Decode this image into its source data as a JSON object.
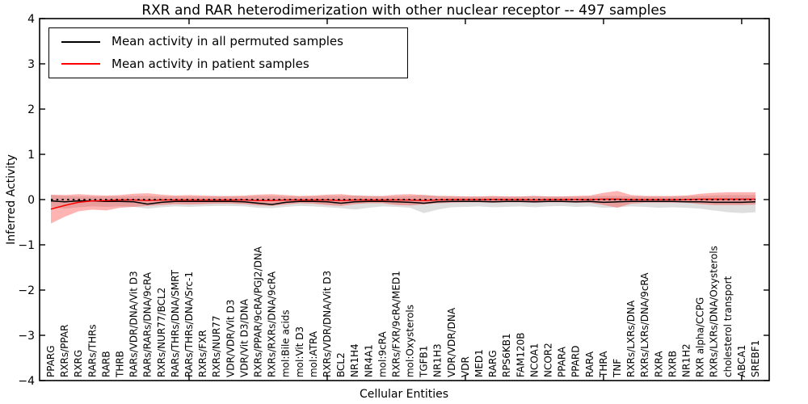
{
  "figure": {
    "background": "#ffffff",
    "frame_color": "#000000"
  },
  "chart_data": {
    "type": "line",
    "title": "RXR and RAR heterodimerization with other nuclear receptor -- 497 samples",
    "xlabel": "Cellular Entities",
    "ylabel": "Inferred Activity",
    "ylim": [
      -4,
      4
    ],
    "grid": false,
    "yticks": [
      {
        "v": 4,
        "label": "4"
      },
      {
        "v": 3,
        "label": "3"
      },
      {
        "v": 2,
        "label": "2"
      },
      {
        "v": 1,
        "label": "1"
      },
      {
        "v": 0,
        "label": "0"
      },
      {
        "v": -1,
        "label": "−1"
      },
      {
        "v": -2,
        "label": "−2"
      },
      {
        "v": -3,
        "label": "−3"
      },
      {
        "v": -4,
        "label": "−4"
      }
    ],
    "xtick_major_indices": [
      10,
      20,
      30,
      40,
      50
    ],
    "legend": {
      "position": "upper left",
      "entries": [
        {
          "label": "Mean activity in all permuted samples",
          "color": "#000000"
        },
        {
          "label": "Mean activity in patient samples",
          "color": "#ff0000"
        }
      ]
    },
    "categories": [
      "PPARG",
      "RXRs/PPAR",
      "RXRG",
      "RARs/THRs",
      "RARB",
      "THRB",
      "RARs/VDR/DNA/Vit D3",
      "RARs/RARs/DNA/9cRA",
      "RXRs/NUR77/BCL2",
      "RARs/THRs/DNA/SMRT",
      "RARs/THRs/DNA/Src-1",
      "RXRs/FXR",
      "RXRs/NUR77",
      "VDR/VDR/Vit D3",
      "VDR/Vit D3/DNA",
      "RXRs/PPAR/9cRA/PGJ2/DNA",
      "RXRs/RXRs/DNA/9cRA",
      "mol:Bile acids",
      "mol:Vit D3",
      "mol:ATRA",
      "RXRs/VDR/DNA/Vit D3",
      "BCL2",
      "NR1H4",
      "NR4A1",
      "mol:9cRA",
      "RXRs/FXR/9cRA/MED1",
      "mol:Oxysterols",
      "TGFB1",
      "NR1H3",
      "VDR/VDR/DNA",
      "VDR",
      "MED1",
      "RARG",
      "RPS6KB1",
      "FAM120B",
      "NCOA1",
      "NCOR2",
      "PPARA",
      "PPARD",
      "RARA",
      "THRA",
      "TNF",
      "RXRs/LXRs/DNA",
      "RXRs/LXRs/DNA/9cRA",
      "RXRA",
      "RXRB",
      "NR1H2",
      "RXR alpha/CCPG",
      "RXRs/LXRs/DNA/Oxysterols",
      "cholesterol transport",
      "ABCA1",
      "SREBF1"
    ],
    "series": [
      {
        "name": "Mean activity in all permuted samples",
        "color": "#000000",
        "style": "solid",
        "values": [
          -0.03,
          -0.05,
          -0.03,
          -0.03,
          -0.04,
          -0.04,
          -0.05,
          -0.1,
          -0.06,
          -0.04,
          -0.04,
          -0.04,
          -0.04,
          -0.04,
          -0.05,
          -0.08,
          -0.11,
          -0.06,
          -0.04,
          -0.04,
          -0.05,
          -0.08,
          -0.05,
          -0.04,
          -0.04,
          -0.05,
          -0.06,
          -0.08,
          -0.05,
          -0.04,
          -0.04,
          -0.04,
          -0.05,
          -0.04,
          -0.04,
          -0.05,
          -0.04,
          -0.04,
          -0.05,
          -0.04,
          -0.06,
          -0.05,
          -0.04,
          -0.04,
          -0.04,
          -0.04,
          -0.05,
          -0.05,
          -0.06,
          -0.06,
          -0.06,
          -0.05
        ]
      },
      {
        "name": "Mean activity in patient samples",
        "color": "#ff0000",
        "style": "solid",
        "values": [
          -0.21,
          -0.13,
          -0.06,
          -0.03,
          -0.02,
          -0.01,
          -0.01,
          -0.02,
          -0.01,
          -0.01,
          -0.01,
          -0.01,
          -0.01,
          -0.01,
          -0.01,
          -0.02,
          -0.02,
          -0.01,
          -0.01,
          -0.01,
          -0.01,
          -0.02,
          -0.01,
          -0.01,
          -0.01,
          -0.01,
          -0.01,
          -0.02,
          -0.01,
          0.0,
          0.0,
          0.0,
          0.0,
          0.0,
          0.0,
          -0.01,
          0.0,
          0.0,
          0.0,
          0.0,
          0.01,
          0.01,
          0.0,
          0.0,
          0.0,
          0.0,
          0.0,
          0.01,
          0.01,
          0.01,
          0.01,
          0.01
        ]
      }
    ],
    "baseline": {
      "value": 0,
      "color": "#000000",
      "style": "dotted"
    },
    "bands": [
      {
        "name": "permuted samples range",
        "color": "#999999",
        "opacity": 0.32,
        "upper": [
          0.1,
          0.08,
          0.07,
          0.07,
          0.07,
          0.07,
          0.08,
          0.08,
          0.07,
          0.07,
          0.07,
          0.07,
          0.07,
          0.07,
          0.07,
          0.08,
          0.08,
          0.07,
          0.07,
          0.07,
          0.08,
          0.08,
          0.09,
          0.08,
          0.07,
          0.07,
          0.08,
          0.1,
          0.08,
          0.07,
          0.07,
          0.07,
          0.07,
          0.07,
          0.07,
          0.08,
          0.07,
          0.07,
          0.07,
          0.07,
          0.08,
          0.08,
          0.07,
          0.07,
          0.07,
          0.07,
          0.08,
          0.08,
          0.09,
          0.1,
          0.1,
          0.1
        ],
        "lower": [
          -0.16,
          -0.2,
          -0.17,
          -0.15,
          -0.16,
          -0.15,
          -0.16,
          -0.2,
          -0.17,
          -0.15,
          -0.16,
          -0.15,
          -0.14,
          -0.14,
          -0.15,
          -0.18,
          -0.19,
          -0.16,
          -0.14,
          -0.15,
          -0.17,
          -0.19,
          -0.22,
          -0.18,
          -0.15,
          -0.16,
          -0.18,
          -0.3,
          -0.22,
          -0.17,
          -0.16,
          -0.15,
          -0.17,
          -0.16,
          -0.15,
          -0.17,
          -0.15,
          -0.14,
          -0.16,
          -0.15,
          -0.18,
          -0.17,
          -0.15,
          -0.16,
          -0.18,
          -0.17,
          -0.18,
          -0.2,
          -0.24,
          -0.28,
          -0.3,
          -0.28
        ]
      },
      {
        "name": "patient samples range",
        "color": "#ff2222",
        "opacity": 0.34,
        "upper": [
          0.11,
          0.1,
          0.12,
          0.1,
          0.09,
          0.1,
          0.13,
          0.14,
          0.11,
          0.09,
          0.1,
          0.09,
          0.08,
          0.08,
          0.09,
          0.11,
          0.12,
          0.1,
          0.08,
          0.09,
          0.11,
          0.12,
          0.09,
          0.08,
          0.08,
          0.11,
          0.12,
          0.1,
          0.08,
          0.08,
          0.07,
          0.07,
          0.08,
          0.07,
          0.07,
          0.08,
          0.07,
          0.07,
          0.08,
          0.09,
          0.15,
          0.19,
          0.1,
          0.08,
          0.08,
          0.08,
          0.09,
          0.13,
          0.15,
          0.16,
          0.16,
          0.16
        ],
        "lower": [
          -0.53,
          -0.38,
          -0.26,
          -0.22,
          -0.24,
          -0.18,
          -0.16,
          -0.14,
          -0.12,
          -0.1,
          -0.11,
          -0.1,
          -0.09,
          -0.09,
          -0.1,
          -0.13,
          -0.14,
          -0.11,
          -0.08,
          -0.09,
          -0.12,
          -0.14,
          -0.1,
          -0.08,
          -0.08,
          -0.12,
          -0.13,
          -0.11,
          -0.08,
          -0.07,
          -0.06,
          -0.06,
          -0.07,
          -0.06,
          -0.06,
          -0.07,
          -0.06,
          -0.06,
          -0.07,
          -0.07,
          -0.12,
          -0.18,
          -0.09,
          -0.07,
          -0.07,
          -0.07,
          -0.07,
          -0.1,
          -0.12,
          -0.12,
          -0.12,
          -0.11
        ]
      }
    ]
  }
}
